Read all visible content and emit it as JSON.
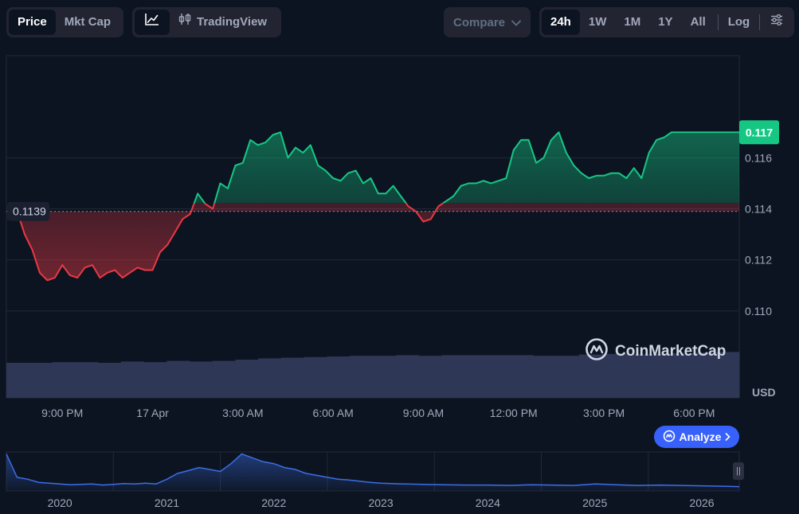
{
  "toolbar": {
    "view_tabs": [
      {
        "label": "Price",
        "active": true
      },
      {
        "label": "Mkt Cap",
        "active": false
      }
    ],
    "chart_type": {
      "line_icon": "line-chart-icon",
      "tradingview_icon": "candlestick-icon",
      "tradingview_label": "TradingView"
    },
    "compare": {
      "label": "Compare",
      "icon": "chevron-down-icon"
    },
    "ranges": [
      {
        "label": "24h",
        "active": true
      },
      {
        "label": "1W",
        "active": false
      },
      {
        "label": "1M",
        "active": false
      },
      {
        "label": "1Y",
        "active": false
      },
      {
        "label": "All",
        "active": false
      }
    ],
    "log_label": "Log",
    "settings_icon": "sliders-icon"
  },
  "brand": {
    "name": "CoinMarketCap",
    "icon": "coinmarketcap-logo-icon"
  },
  "analyze": {
    "label": "Analyze",
    "icon": "analyze-icon"
  },
  "colors": {
    "up": "#16c784",
    "down": "#ea3943",
    "background": "#0d1421",
    "volume": "#2f3757",
    "navigator_line": "#3b6ee6"
  },
  "chart_data": {
    "type": "line",
    "currency": "USD",
    "open_price": 0.1139,
    "open_price_label": "0.1139",
    "current_price": 0.117,
    "current_price_label": "0.117",
    "y_ticks": [
      0.11,
      0.112,
      0.114,
      0.116
    ],
    "y_tick_labels": [
      "0.110",
      "0.112",
      "0.114",
      "0.116"
    ],
    "ylim": [
      0.108,
      0.12
    ],
    "x_tick_labels": [
      "9:00 PM",
      "17 Apr",
      "3:00 AM",
      "6:00 AM",
      "9:00 AM",
      "12:00 PM",
      "3:00 PM",
      "6:00 PM"
    ],
    "x_ticks_h": [
      1.5,
      4.5,
      7.5,
      10.5,
      13.5,
      16.5,
      19.5,
      22.5
    ],
    "x_range_h": [
      -0.36,
      24.0
    ],
    "x_h": [
      0.0,
      0.25,
      0.5,
      0.75,
      1.0,
      1.25,
      1.5,
      1.75,
      2.0,
      2.25,
      2.5,
      2.75,
      3.0,
      3.25,
      3.5,
      3.75,
      4.0,
      4.25,
      4.5,
      4.75,
      5.0,
      5.25,
      5.5,
      5.75,
      6.0,
      6.25,
      6.5,
      6.75,
      7.0,
      7.25,
      7.5,
      7.75,
      8.0,
      8.25,
      8.5,
      8.75,
      9.0,
      9.25,
      9.5,
      9.75,
      10.0,
      10.25,
      10.5,
      10.75,
      11.0,
      11.25,
      11.5,
      11.75,
      12.0,
      12.25,
      12.5,
      12.75,
      13.0,
      13.25,
      13.5,
      13.75,
      14.0,
      14.25,
      14.5,
      14.75,
      15.0,
      15.25,
      15.5,
      15.75,
      16.0,
      16.25,
      16.5,
      16.75,
      17.0,
      17.25,
      17.5,
      17.75,
      18.0,
      18.25,
      18.5,
      18.75,
      19.0,
      19.25,
      19.5,
      19.75,
      20.0,
      20.25,
      20.5,
      20.75,
      21.0,
      21.25,
      21.5,
      21.75,
      22.0,
      22.25,
      22.5,
      22.75,
      23.0,
      23.25,
      23.5,
      23.75,
      24.0
    ],
    "price": [
      0.1139,
      0.113,
      0.1124,
      0.1115,
      0.1112,
      0.1113,
      0.1118,
      0.1114,
      0.1113,
      0.1117,
      0.1118,
      0.1113,
      0.1115,
      0.1116,
      0.1113,
      0.1115,
      0.1117,
      0.1116,
      0.1116,
      0.1123,
      0.1126,
      0.1131,
      0.1136,
      0.1138,
      0.1146,
      0.1142,
      0.114,
      0.115,
      0.1148,
      0.1157,
      0.1158,
      0.1167,
      0.1165,
      0.1166,
      0.1169,
      0.117,
      0.116,
      0.1164,
      0.1162,
      0.1165,
      0.1157,
      0.1155,
      0.1152,
      0.1151,
      0.1154,
      0.1155,
      0.115,
      0.1152,
      0.1146,
      0.1146,
      0.1149,
      0.1145,
      0.1141,
      0.1139,
      0.1135,
      0.1136,
      0.1141,
      0.1143,
      0.1145,
      0.1149,
      0.115,
      0.115,
      0.1151,
      0.115,
      0.1151,
      0.1152,
      0.1163,
      0.1167,
      0.1167,
      0.1158,
      0.116,
      0.1167,
      0.117,
      0.1162,
      0.1157,
      0.1154,
      0.1152,
      0.1153,
      0.1153,
      0.1154,
      0.1154,
      0.1152,
      0.1156,
      0.1152,
      0.1162,
      0.1167,
      0.1168,
      0.117,
      0.117,
      0.117,
      0.117,
      0.117,
      0.117,
      0.117,
      0.117,
      0.117,
      0.117
    ],
    "price_note": "",
    "volume_rel": [
      0.55,
      0.55,
      0.56,
      0.56,
      0.55,
      0.57,
      0.56,
      0.58,
      0.57,
      0.58,
      0.6,
      0.62,
      0.63,
      0.64,
      0.65,
      0.66,
      0.66,
      0.67,
      0.66,
      0.67,
      0.67,
      0.67,
      0.67,
      0.66,
      0.66,
      0.68,
      0.69,
      0.69,
      0.69,
      0.7,
      0.71,
      0.72
    ],
    "navigator": {
      "x_tick_labels": [
        "2020",
        "2021",
        "2022",
        "2023",
        "2024",
        "2025",
        "2026"
      ],
      "x_ticks_year": [
        2020,
        2021,
        2022,
        2023,
        2024,
        2025,
        2026
      ],
      "x_range_year": [
        2019.5,
        2026.35
      ],
      "x_year": [
        2019.5,
        2019.6,
        2019.7,
        2019.8,
        2019.9,
        2020.0,
        2020.1,
        2020.2,
        2020.3,
        2020.4,
        2020.5,
        2020.6,
        2020.7,
        2020.8,
        2020.9,
        2021.0,
        2021.1,
        2021.2,
        2021.3,
        2021.4,
        2021.5,
        2021.6,
        2021.7,
        2021.8,
        2021.9,
        2022.0,
        2022.1,
        2022.2,
        2022.3,
        2022.4,
        2022.5,
        2022.6,
        2022.7,
        2022.8,
        2022.9,
        2023.0,
        2023.2,
        2023.4,
        2023.6,
        2023.8,
        2024.0,
        2024.2,
        2024.4,
        2024.6,
        2024.8,
        2025.0,
        2025.2,
        2025.4,
        2025.6,
        2025.8,
        2026.0,
        2026.2,
        2026.35
      ],
      "value_rel": [
        0.95,
        0.35,
        0.3,
        0.22,
        0.2,
        0.18,
        0.16,
        0.17,
        0.18,
        0.15,
        0.17,
        0.19,
        0.18,
        0.2,
        0.18,
        0.3,
        0.45,
        0.52,
        0.6,
        0.55,
        0.5,
        0.7,
        0.95,
        0.85,
        0.75,
        0.7,
        0.6,
        0.55,
        0.45,
        0.4,
        0.35,
        0.3,
        0.28,
        0.25,
        0.22,
        0.2,
        0.18,
        0.17,
        0.16,
        0.15,
        0.15,
        0.14,
        0.16,
        0.15,
        0.14,
        0.18,
        0.16,
        0.14,
        0.15,
        0.14,
        0.13,
        0.12,
        0.11
      ]
    }
  }
}
